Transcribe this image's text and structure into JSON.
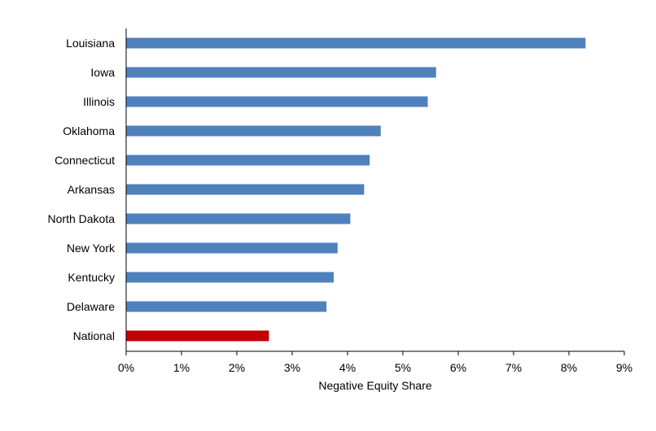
{
  "chart_data": {
    "type": "bar",
    "orientation": "horizontal",
    "categories": [
      "Louisiana",
      "Iowa",
      "Illinois",
      "Oklahoma",
      "Connecticut",
      "Arkansas",
      "North Dakota",
      "New York",
      "Kentucky",
      "Delaware",
      "National"
    ],
    "values": [
      8.3,
      5.6,
      5.45,
      4.6,
      4.4,
      4.3,
      4.05,
      3.82,
      3.75,
      3.62,
      2.58
    ],
    "xlabel": "Negative Equity Share",
    "xlim": [
      0,
      9
    ],
    "xticks": [
      "0%",
      "1%",
      "2%",
      "3%",
      "4%",
      "5%",
      "6%",
      "7%",
      "8%",
      "9%"
    ],
    "grid": false,
    "colors": {
      "bar": "#4f81bd",
      "highlight": "#c00000",
      "highlight_category": "National"
    }
  }
}
